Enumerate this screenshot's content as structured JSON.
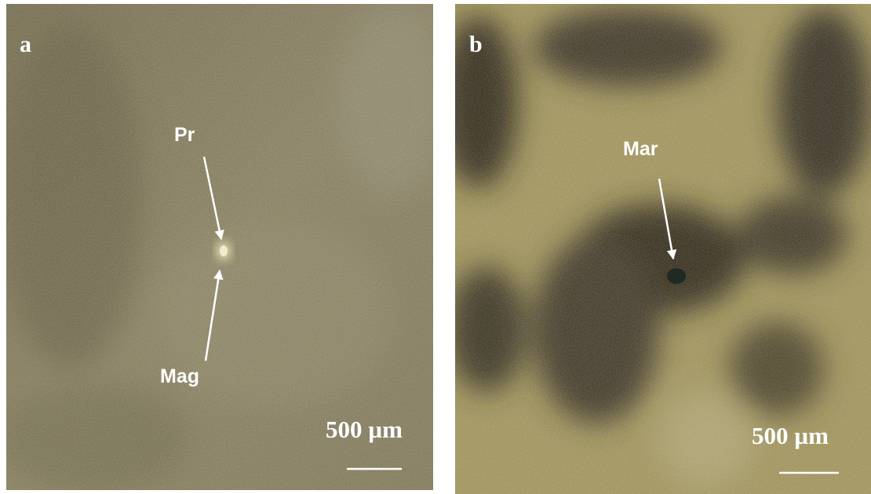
{
  "panels": [
    {
      "label": "a",
      "annotations": [
        "Pr",
        "Mag"
      ],
      "scale": "500 µm"
    },
    {
      "label": "b",
      "annotations": [
        "Mar"
      ],
      "scale": "500 µm"
    }
  ]
}
